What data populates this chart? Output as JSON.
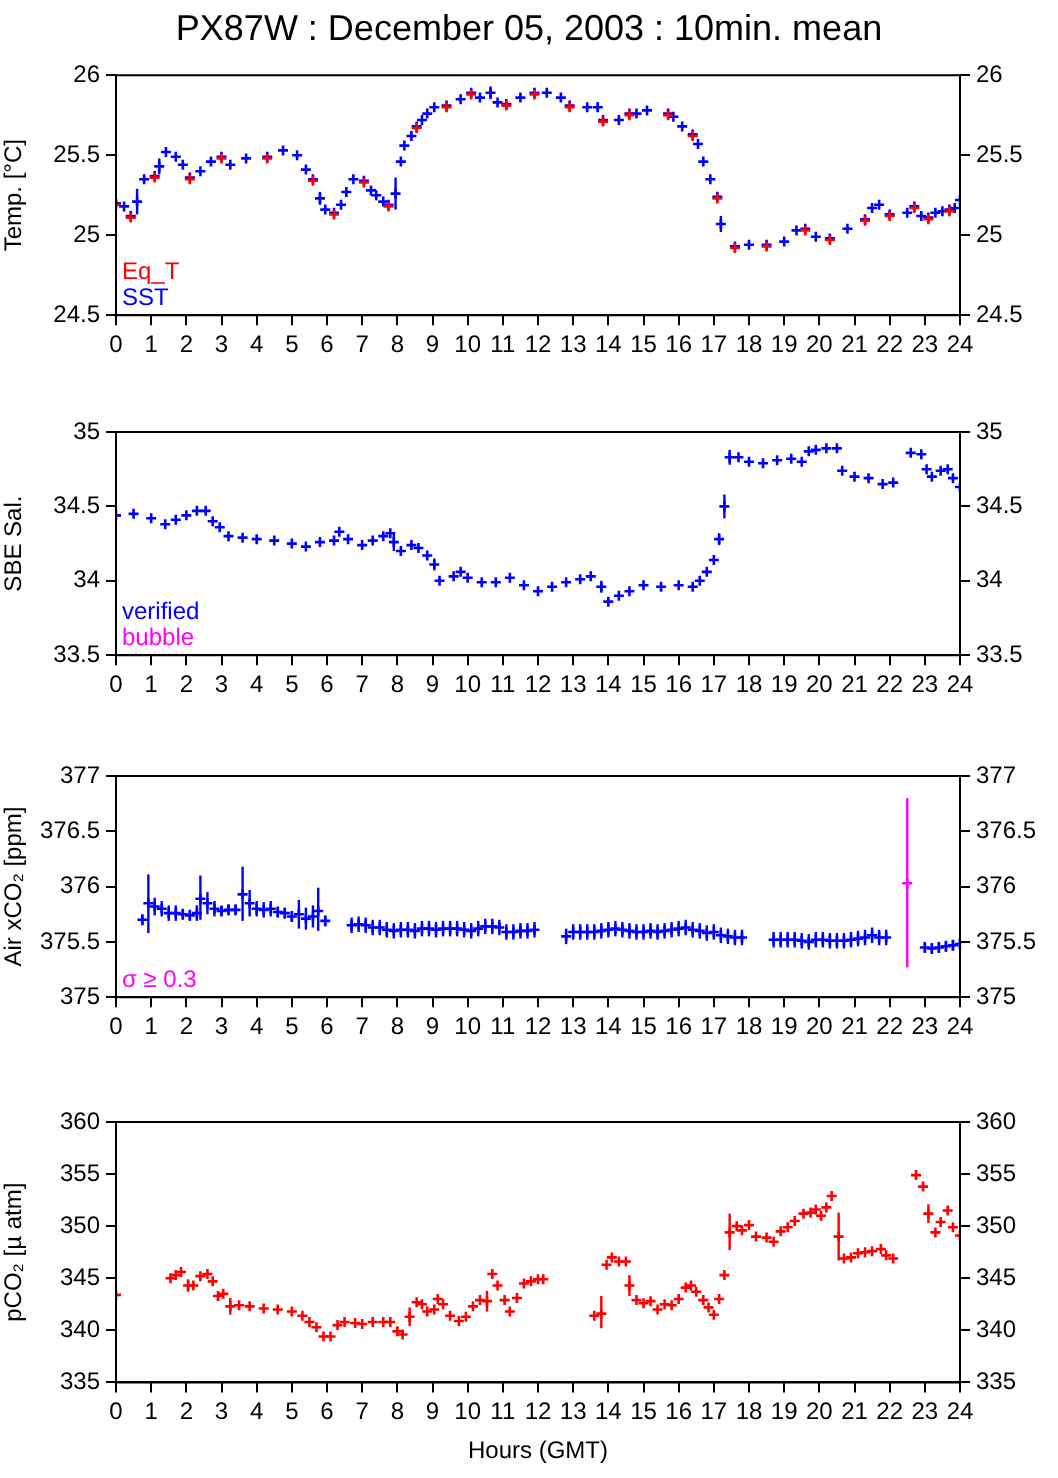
{
  "chart_data": [
    {
      "type": "scatter",
      "title": "PX87W : December 05, 2003 : 10min. mean",
      "ylabel": "Temp. [°C]",
      "xlim": [
        0,
        24
      ],
      "xticks": [
        0,
        1,
        2,
        3,
        4,
        5,
        6,
        7,
        8,
        9,
        10,
        11,
        12,
        13,
        14,
        15,
        16,
        17,
        18,
        19,
        20,
        21,
        22,
        23,
        24
      ],
      "ylim": [
        24.5,
        26
      ],
      "yticks": [
        24.5,
        25,
        25.5,
        26
      ],
      "y2lim": [
        24.5,
        26
      ],
      "y2ticks": [
        24.5,
        25,
        25.5,
        26
      ],
      "marker": "cross",
      "legend": "bottom left",
      "series": [
        {
          "name": "Eq_T",
          "color": "#ff0000",
          "x": [
            0,
            0.42,
            1.1,
            2.1,
            3.0,
            4.3,
            5.6,
            6.2,
            7.05,
            7.75,
            8.55,
            9.4,
            10.1,
            11.1,
            11.9,
            12.9,
            13.85,
            14.6,
            15.7,
            16.4,
            17.1,
            17.6,
            18.5,
            19.6,
            20.3,
            21.3,
            22.0,
            22.7,
            23.1,
            23.7
          ],
          "values": [
            25.19,
            25.11,
            25.36,
            25.35,
            25.48,
            25.48,
            25.34,
            25.13,
            25.33,
            25.18,
            25.67,
            25.8,
            25.88,
            25.81,
            25.88,
            25.8,
            25.71,
            25.75,
            25.75,
            25.62,
            25.23,
            24.92,
            24.93,
            25.03,
            24.97,
            25.09,
            25.12,
            25.17,
            25.1,
            25.15
          ]
        },
        {
          "name": "SST",
          "color": "#0000ff",
          "x": [
            0,
            0.23,
            0.42,
            0.6,
            0.8,
            1.1,
            1.23,
            1.42,
            1.7,
            1.9,
            2.1,
            2.4,
            2.7,
            3.0,
            3.25,
            3.7,
            4.3,
            4.75,
            5.15,
            5.4,
            5.6,
            5.8,
            5.95,
            6.2,
            6.4,
            6.55,
            6.75,
            7.05,
            7.25,
            7.4,
            7.6,
            7.75,
            7.95,
            8.1,
            8.2,
            8.4,
            8.55,
            8.7,
            8.85,
            9.05,
            9.4,
            9.8,
            10.1,
            10.35,
            10.65,
            10.85,
            11.1,
            11.5,
            11.9,
            12.25,
            12.65,
            12.9,
            13.4,
            13.7,
            13.85,
            14.3,
            14.6,
            14.8,
            15.1,
            15.7,
            15.85,
            16.1,
            16.4,
            16.55,
            16.7,
            16.9,
            17.1,
            17.2,
            17.6,
            18.0,
            18.5,
            19.0,
            19.35,
            19.6,
            19.9,
            20.3,
            20.8,
            21.3,
            21.5,
            21.7,
            22.0,
            22.5,
            22.7,
            22.9,
            23.1,
            23.3,
            23.5,
            23.7,
            23.85,
            24
          ],
          "values": [
            25.2,
            25.18,
            25.12,
            25.21,
            25.35,
            25.37,
            25.43,
            25.52,
            25.49,
            25.44,
            25.36,
            25.4,
            25.46,
            25.49,
            25.44,
            25.48,
            25.49,
            25.53,
            25.5,
            25.41,
            25.35,
            25.23,
            25.16,
            25.14,
            25.19,
            25.27,
            25.35,
            25.34,
            25.28,
            25.25,
            25.21,
            25.19,
            25.26,
            25.46,
            25.56,
            25.62,
            25.68,
            25.72,
            25.76,
            25.8,
            25.81,
            25.85,
            25.89,
            25.86,
            25.89,
            25.83,
            25.82,
            25.86,
            25.89,
            25.89,
            25.86,
            25.81,
            25.8,
            25.8,
            25.72,
            25.72,
            25.76,
            25.76,
            25.78,
            25.76,
            25.74,
            25.68,
            25.63,
            25.57,
            25.46,
            25.35,
            25.24,
            25.07,
            24.93,
            24.94,
            24.94,
            24.96,
            25.03,
            25.04,
            24.99,
            24.98,
            25.04,
            25.1,
            25.17,
            25.19,
            25.13,
            25.14,
            25.18,
            25.12,
            25.11,
            25.14,
            25.15,
            25.16,
            25.17,
            25.22
          ],
          "errors": [
            null,
            null,
            null,
            0.08,
            null,
            null,
            0.05,
            null,
            null,
            null,
            null,
            null,
            null,
            null,
            null,
            null,
            null,
            null,
            null,
            null,
            null,
            0.04,
            null,
            null,
            null,
            null,
            null,
            null,
            null,
            null,
            null,
            null,
            0.1,
            null,
            null,
            null,
            null,
            null,
            null,
            null,
            null,
            null,
            null,
            null,
            0.04,
            null,
            null,
            null,
            null,
            null,
            null,
            null,
            null,
            0.03,
            null,
            null,
            null,
            null,
            null,
            null,
            null,
            null,
            null,
            null,
            null,
            null,
            null,
            0.05,
            null,
            null,
            null,
            null,
            null,
            null,
            null,
            null,
            null,
            null,
            null,
            null,
            null,
            null,
            null,
            null,
            null,
            null,
            null,
            null,
            null,
            null
          ]
        }
      ]
    },
    {
      "type": "scatter",
      "ylabel": "SBE Sal.",
      "xlim": [
        0,
        24
      ],
      "xticks": [
        0,
        1,
        2,
        3,
        4,
        5,
        6,
        7,
        8,
        9,
        10,
        11,
        12,
        13,
        14,
        15,
        16,
        17,
        18,
        19,
        20,
        21,
        22,
        23,
        24
      ],
      "ylim": [
        33.5,
        35
      ],
      "yticks": [
        33.5,
        34,
        34.5,
        35
      ],
      "y2lim": [
        33.5,
        35
      ],
      "y2ticks": [
        33.5,
        34,
        34.5,
        35
      ],
      "marker": "cross",
      "legend": "bottom left",
      "series": [
        {
          "name": "verified",
          "color": "#0000ff",
          "x": [
            0,
            0.5,
            1.0,
            1.4,
            1.7,
            2.0,
            2.3,
            2.55,
            2.75,
            2.95,
            3.2,
            3.6,
            4.0,
            4.5,
            5.0,
            5.4,
            5.8,
            6.2,
            6.35,
            6.6,
            7.0,
            7.3,
            7.6,
            7.8,
            7.9,
            8.1,
            8.4,
            8.6,
            8.85,
            9.05,
            9.2,
            9.6,
            9.8,
            10.0,
            10.4,
            10.8,
            11.2,
            11.6,
            12.0,
            12.4,
            12.8,
            13.2,
            13.5,
            13.8,
            14.0,
            14.3,
            14.6,
            15.0,
            15.5,
            16.0,
            16.4,
            16.6,
            16.8,
            17.0,
            17.15,
            17.3,
            17.45,
            17.7,
            18.0,
            18.4,
            18.8,
            19.2,
            19.5,
            19.7,
            19.9,
            20.2,
            20.5,
            20.65,
            21.0,
            21.4,
            21.8,
            22.1,
            22.6,
            22.9,
            23.05,
            23.2,
            23.45,
            23.65,
            23.8,
            24.0
          ],
          "values": [
            34.44,
            34.45,
            34.42,
            34.38,
            34.41,
            34.44,
            34.47,
            34.47,
            34.4,
            34.36,
            34.3,
            34.29,
            34.28,
            34.27,
            34.25,
            34.23,
            34.26,
            34.27,
            34.33,
            34.28,
            34.24,
            34.27,
            34.3,
            34.32,
            34.26,
            34.2,
            34.24,
            34.22,
            34.17,
            34.11,
            34.0,
            34.03,
            34.06,
            34.02,
            33.99,
            33.99,
            34.02,
            33.97,
            33.93,
            33.96,
            33.99,
            34.01,
            34.03,
            33.96,
            33.86,
            33.9,
            33.93,
            33.97,
            33.96,
            33.97,
            33.96,
            34.0,
            34.06,
            34.14,
            34.28,
            34.5,
            34.83,
            34.83,
            34.8,
            34.79,
            34.81,
            34.82,
            34.8,
            34.87,
            34.88,
            34.89,
            34.89,
            34.74,
            34.7,
            34.69,
            34.65,
            34.66,
            34.86,
            34.85,
            34.75,
            34.7,
            34.74,
            34.75,
            34.69,
            34.63
          ],
          "errors": [
            null,
            null,
            null,
            null,
            null,
            null,
            null,
            null,
            null,
            null,
            null,
            null,
            null,
            null,
            null,
            null,
            null,
            null,
            null,
            null,
            null,
            null,
            null,
            null,
            0.06,
            null,
            null,
            null,
            null,
            0.04,
            null,
            null,
            null,
            null,
            null,
            null,
            null,
            null,
            null,
            null,
            null,
            null,
            null,
            0.04,
            null,
            null,
            null,
            null,
            null,
            null,
            null,
            null,
            null,
            null,
            0.04,
            0.08,
            0.05,
            null,
            null,
            null,
            null,
            null,
            null,
            null,
            null,
            null,
            null,
            null,
            null,
            null,
            null,
            null,
            null,
            null,
            null,
            null,
            null,
            null,
            null,
            null
          ]
        },
        {
          "name": "bubble",
          "color": "#ff00ff"
        }
      ]
    },
    {
      "type": "scatter",
      "ylabel": "Air xCO₂ [ppm]",
      "xlim": [
        0,
        24
      ],
      "xticks": [
        0,
        1,
        2,
        3,
        4,
        5,
        6,
        7,
        8,
        9,
        10,
        11,
        12,
        13,
        14,
        15,
        16,
        17,
        18,
        19,
        20,
        21,
        22,
        23,
        24
      ],
      "ylim": [
        375,
        377
      ],
      "yticks": [
        375,
        375.5,
        376,
        376.5,
        377
      ],
      "y2lim": [
        375,
        377
      ],
      "y2ticks": [
        375,
        375.5,
        376,
        376.5,
        377
      ],
      "marker": "cross",
      "legend": "bottom left",
      "series": [
        {
          "color": "#0000ff",
          "x": [
            0.75,
            0.92,
            1.1,
            1.3,
            1.5,
            1.7,
            1.9,
            2.1,
            2.3,
            2.4,
            2.6,
            2.8,
            3.0,
            3.2,
            3.4,
            3.6,
            3.8,
            4.0,
            4.2,
            4.4,
            4.6,
            4.8,
            5.0,
            5.2,
            5.4,
            5.6,
            5.75,
            5.95,
            6.7,
            6.9,
            7.1,
            7.3,
            7.5,
            7.7,
            7.9,
            8.1,
            8.3,
            8.5,
            8.7,
            8.9,
            9.1,
            9.3,
            9.5,
            9.7,
            9.9,
            10.1,
            10.3,
            10.5,
            10.7,
            10.9,
            11.1,
            11.3,
            11.5,
            11.7,
            11.9,
            12.8,
            13.0,
            13.2,
            13.4,
            13.6,
            13.8,
            14.0,
            14.2,
            14.4,
            14.6,
            14.8,
            15.0,
            15.2,
            15.4,
            15.6,
            15.8,
            16.0,
            16.2,
            16.4,
            16.6,
            16.8,
            17.0,
            17.2,
            17.4,
            17.6,
            17.8,
            18.7,
            18.9,
            19.1,
            19.3,
            19.5,
            19.7,
            19.9,
            20.1,
            20.3,
            20.5,
            20.7,
            20.9,
            21.1,
            21.3,
            21.5,
            21.7,
            21.9,
            23.0,
            23.2,
            23.4,
            23.6,
            23.8,
            24.0
          ],
          "values": [
            375.7,
            375.85,
            375.82,
            375.8,
            375.76,
            375.76,
            375.75,
            375.74,
            375.76,
            375.89,
            375.85,
            375.8,
            375.78,
            375.79,
            375.79,
            375.93,
            375.85,
            375.8,
            375.79,
            375.8,
            375.77,
            375.76,
            375.73,
            375.75,
            375.71,
            375.73,
            375.78,
            375.69,
            375.65,
            375.66,
            375.65,
            375.63,
            375.63,
            375.61,
            375.6,
            375.61,
            375.61,
            375.6,
            375.62,
            375.62,
            375.61,
            375.62,
            375.62,
            375.62,
            375.61,
            375.6,
            375.62,
            375.64,
            375.64,
            375.63,
            375.59,
            375.59,
            375.6,
            375.6,
            375.61,
            375.55,
            375.59,
            375.59,
            375.59,
            375.59,
            375.6,
            375.61,
            375.62,
            375.61,
            375.6,
            375.59,
            375.59,
            375.6,
            375.59,
            375.6,
            375.61,
            375.62,
            375.63,
            375.61,
            375.6,
            375.58,
            375.59,
            375.56,
            375.55,
            375.54,
            375.54,
            375.52,
            375.52,
            375.52,
            375.52,
            375.51,
            375.5,
            375.52,
            375.52,
            375.51,
            375.51,
            375.51,
            375.52,
            375.53,
            375.54,
            375.56,
            375.54,
            375.54,
            375.45,
            375.44,
            375.45,
            375.46,
            375.47,
            375.48
          ],
          "errors": [
            0.05,
            [
              375.58,
              376.11
            ],
            0.08,
            0.07,
            0.07,
            0.07,
            0.05,
            0.05,
            0.07,
            [
              375.7,
              376.1
            ],
            0.1,
            0.07,
            0.05,
            0.05,
            0.05,
            [
              375.69,
              376.18
            ],
            0.12,
            0.07,
            0.07,
            0.07,
            0.05,
            0.05,
            0.05,
            0.13,
            0.1,
            0.1,
            [
              375.6,
              375.99
            ],
            0.05,
            0.07,
            0.07,
            0.07,
            0.07,
            0.07,
            0.07,
            0.07,
            0.07,
            0.07,
            0.07,
            0.07,
            0.07,
            0.07,
            0.07,
            0.07,
            0.07,
            0.07,
            0.07,
            0.07,
            0.07,
            0.07,
            0.07,
            0.07,
            0.07,
            0.07,
            0.07,
            0.07,
            0.07,
            0.07,
            0.07,
            0.07,
            0.07,
            0.07,
            0.07,
            0.07,
            0.07,
            0.07,
            0.07,
            0.07,
            0.07,
            0.07,
            0.07,
            0.07,
            0.07,
            0.07,
            0.07,
            0.07,
            0.07,
            0.07,
            0.07,
            0.07,
            0.07,
            0.07,
            0.07,
            0.07,
            0.07,
            0.07,
            0.07,
            0.07,
            0.07,
            0.07,
            0.07,
            0.07,
            0.07,
            0.07,
            0.07,
            0.07,
            0.07,
            0.07,
            0.07,
            0.05,
            0.05,
            0.05,
            0.05,
            0.05,
            0.05
          ]
        },
        {
          "name": "σ ≥ 0.3",
          "color": "#ff00ff",
          "x": [
            22.5
          ],
          "values": [
            376.03
          ],
          "errors": [
            [
              375.27,
              376.8
            ]
          ]
        }
      ]
    },
    {
      "type": "scatter",
      "ylabel": "pCO₂ [µ atm]",
      "xlabel": "Hours (GMT)",
      "xlim": [
        0,
        24
      ],
      "xticks": [
        0,
        1,
        2,
        3,
        4,
        5,
        6,
        7,
        8,
        9,
        10,
        11,
        12,
        13,
        14,
        15,
        16,
        17,
        18,
        19,
        20,
        21,
        22,
        23,
        24
      ],
      "ylim": [
        335,
        360
      ],
      "yticks": [
        335,
        340,
        345,
        350,
        355,
        360
      ],
      "y2lim": [
        335,
        360
      ],
      "y2ticks": [
        335,
        340,
        345,
        350,
        355,
        360
      ],
      "marker": "cross",
      "series": [
        {
          "color": "#ff0000",
          "x": [
            0,
            1.55,
            1.7,
            1.85,
            2.05,
            2.2,
            2.4,
            2.6,
            2.75,
            2.9,
            3.05,
            3.25,
            3.5,
            3.8,
            4.2,
            4.6,
            5.0,
            5.3,
            5.5,
            5.7,
            5.9,
            6.1,
            6.3,
            6.5,
            6.8,
            7.0,
            7.3,
            7.6,
            7.8,
            8.0,
            8.15,
            8.35,
            8.55,
            8.7,
            8.85,
            9.05,
            9.15,
            9.3,
            9.5,
            9.75,
            9.95,
            10.15,
            10.35,
            10.55,
            10.7,
            10.85,
            11.05,
            11.2,
            11.4,
            11.6,
            11.8,
            12.0,
            12.15,
            13.6,
            13.8,
            13.95,
            14.1,
            14.3,
            14.5,
            14.6,
            14.8,
            15.0,
            15.2,
            15.4,
            15.6,
            15.8,
            16.0,
            16.2,
            16.35,
            16.5,
            16.7,
            16.85,
            17.0,
            17.15,
            17.3,
            17.45,
            17.65,
            17.8,
            18.0,
            18.2,
            18.5,
            18.7,
            18.9,
            19.1,
            19.3,
            19.55,
            19.75,
            19.9,
            20.05,
            20.2,
            20.35,
            20.55,
            20.7,
            20.9,
            21.1,
            21.3,
            21.5,
            21.75,
            21.9,
            22.1,
            22.75,
            22.95,
            23.1,
            23.3,
            23.45,
            23.65,
            23.8,
            24.0
          ],
          "values": [
            343.4,
            345.0,
            345.3,
            345.6,
            344.3,
            344.3,
            345.2,
            345.4,
            344.7,
            343.3,
            343.5,
            342.3,
            342.4,
            342.3,
            342.1,
            342.0,
            341.8,
            341.4,
            340.8,
            340.3,
            339.4,
            339.4,
            340.5,
            340.8,
            340.7,
            340.6,
            340.8,
            340.8,
            340.8,
            339.9,
            339.6,
            341.3,
            342.7,
            342.5,
            341.8,
            342.0,
            343.0,
            342.5,
            341.4,
            340.9,
            341.3,
            342.3,
            342.9,
            342.8,
            345.4,
            344.3,
            342.9,
            341.8,
            343.1,
            344.5,
            344.7,
            344.9,
            344.9,
            341.4,
            341.6,
            346.3,
            347.0,
            346.6,
            346.6,
            344.3,
            342.9,
            342.6,
            342.8,
            342.0,
            342.5,
            342.4,
            343.0,
            344.1,
            344.3,
            343.7,
            342.9,
            342.2,
            341.5,
            343.0,
            345.3,
            349.4,
            350.0,
            349.6,
            350.1,
            349.0,
            348.9,
            348.5,
            349.5,
            349.9,
            350.5,
            351.2,
            351.3,
            351.6,
            351.0,
            351.8,
            352.9,
            349.0,
            346.9,
            347.0,
            347.4,
            347.5,
            347.6,
            347.8,
            347.2,
            346.9,
            354.9,
            353.8,
            351.2,
            349.4,
            350.4,
            351.5,
            349.9,
            349.1
          ],
          "errors": [
            null,
            null,
            null,
            null,
            0.6,
            null,
            null,
            null,
            null,
            null,
            null,
            0.8,
            null,
            null,
            null,
            null,
            null,
            null,
            null,
            null,
            null,
            null,
            null,
            null,
            null,
            null,
            null,
            null,
            null,
            null,
            null,
            0.9,
            null,
            null,
            null,
            null,
            null,
            null,
            null,
            null,
            null,
            null,
            null,
            1.0,
            null,
            null,
            null,
            null,
            null,
            null,
            null,
            null,
            null,
            null,
            [
              340.2,
              343.3
            ],
            null,
            null,
            null,
            null,
            1.0,
            null,
            null,
            null,
            null,
            null,
            null,
            null,
            null,
            null,
            null,
            null,
            null,
            null,
            null,
            null,
            [
              347.7,
              351.2
            ],
            null,
            null,
            null,
            null,
            null,
            null,
            null,
            null,
            null,
            null,
            null,
            null,
            null,
            null,
            null,
            [
              346.7,
              351.3
            ],
            null,
            null,
            null,
            null,
            null,
            null,
            null,
            null,
            null,
            null,
            0.9,
            null,
            null,
            null,
            null,
            null
          ]
        }
      ]
    }
  ]
}
